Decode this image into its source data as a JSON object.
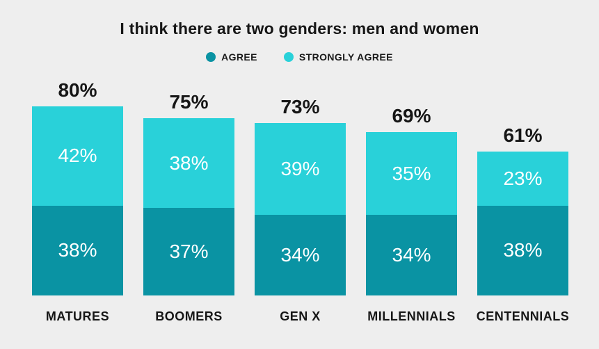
{
  "title": "I think there are two genders: men and women",
  "legend": {
    "items": [
      {
        "label": "AGREE",
        "color": "#0a93a3"
      },
      {
        "label": "STRONGLY AGREE",
        "color": "#29d1d9"
      }
    ]
  },
  "colors": {
    "background": "#eeeeee",
    "agree": "#0a93a3",
    "strongly_agree": "#29d1d9",
    "text": "#161616",
    "segment_label": "#ffffff"
  },
  "chart_data": {
    "type": "bar",
    "stacked": true,
    "title": "I think there are two genders: men and women",
    "categories": [
      "MATURES",
      "BOOMERS",
      "GEN X",
      "MILLENNIALS",
      "CENTENNIALS"
    ],
    "series": [
      {
        "name": "AGREE",
        "color": "#0a93a3",
        "values": [
          38,
          37,
          34,
          34,
          38
        ]
      },
      {
        "name": "STRONGLY AGREE",
        "color": "#29d1d9",
        "values": [
          42,
          38,
          39,
          35,
          23
        ]
      }
    ],
    "totals": [
      80,
      75,
      73,
      69,
      61
    ],
    "value_suffix": "%",
    "ylim": [
      0,
      100
    ],
    "grid": false,
    "legend_position": "top",
    "category_axis": "bottom"
  }
}
